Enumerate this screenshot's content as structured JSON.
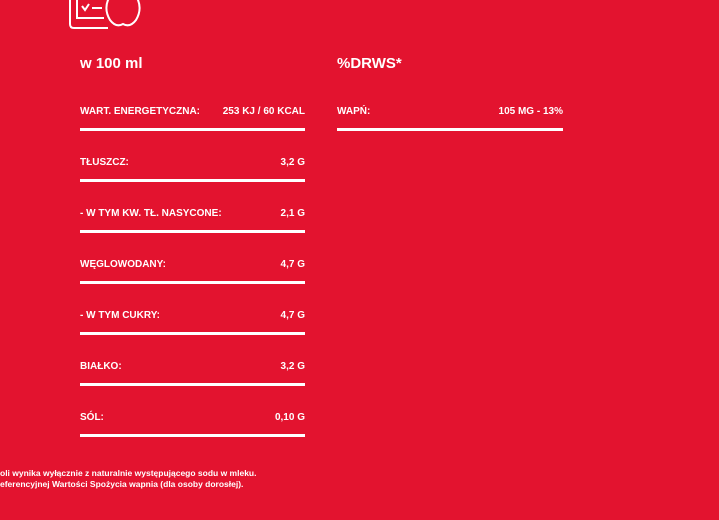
{
  "icon": "nutrition-label-apple-icon",
  "left": {
    "heading": "w 100 ml",
    "rows": [
      {
        "label": "WART. ENERGETYCZNA:",
        "value": "253 KJ / 60 KCAL"
      },
      {
        "label": "TŁUSZCZ:",
        "value": "3,2 G"
      },
      {
        "label": "- W TYM KW. TŁ. NASYCONE:",
        "value": "2,1 G"
      },
      {
        "label": "WĘGLOWODANY:",
        "value": "4,7 G"
      },
      {
        "label": "- W TYM CUKRY:",
        "value": "4,7 G"
      },
      {
        "label": "BIAŁKO:",
        "value": "3,2 G"
      },
      {
        "label": "SÓL:",
        "value": "0,10 G"
      }
    ]
  },
  "right": {
    "heading": "%DRWS*",
    "rows": [
      {
        "label": "WAPŃ:",
        "value": "105 MG - 13%"
      }
    ]
  },
  "footnotes": [
    "oli wynika wyłącznie z naturalnie występującego sodu w mleku.",
    "eferencyjnej Wartości Spożycia wapnia (dla osoby dorosłej)."
  ],
  "colors": {
    "background": "#e3132f",
    "text": "#ffffff"
  }
}
